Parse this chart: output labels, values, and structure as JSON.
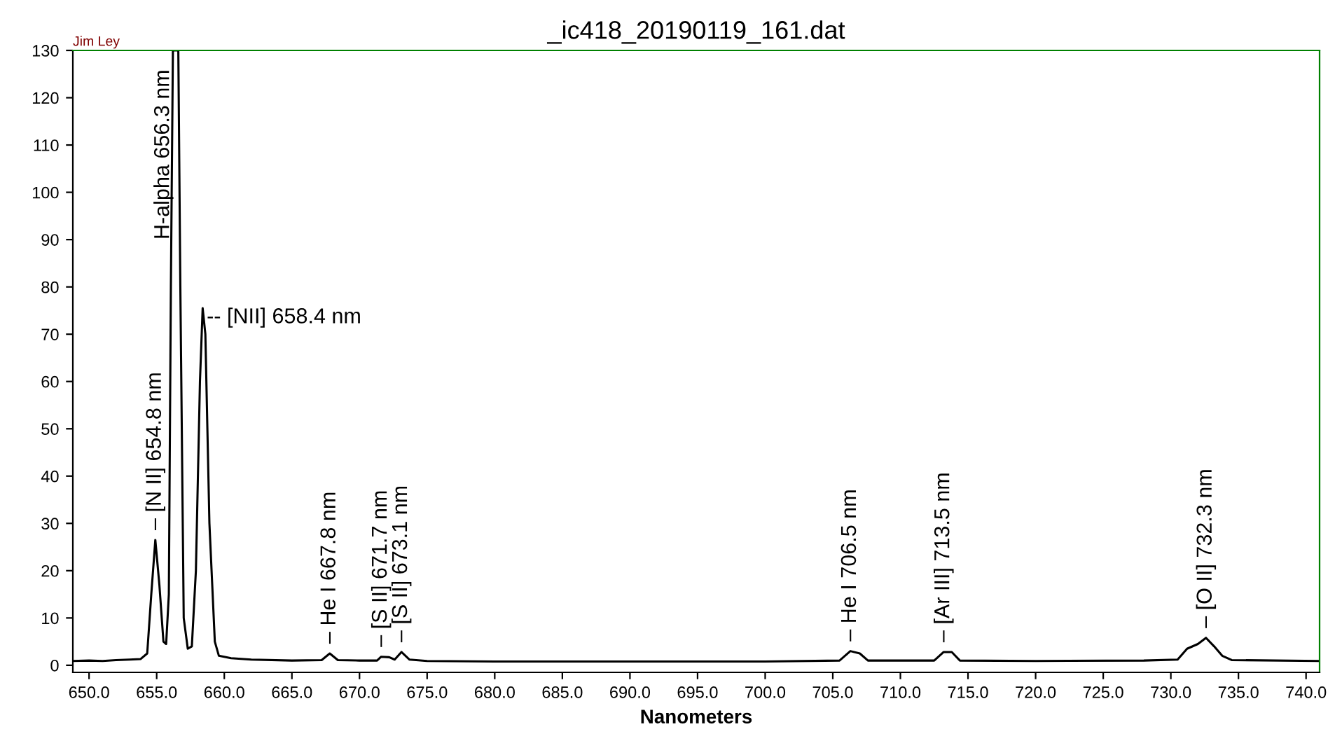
{
  "chart_data": {
    "type": "line",
    "title": "_ic418_20190119_161.dat",
    "xlabel": "Nanometers",
    "x": [
      648.8,
      650,
      651,
      652,
      653,
      653.8,
      654.3,
      654.6,
      654.9,
      655.2,
      655.5,
      655.7,
      655.9,
      656.05,
      656.2,
      656.6,
      656.75,
      657.0,
      657.3,
      657.6,
      657.9,
      658.2,
      658.4,
      658.6,
      658.9,
      659.3,
      659.6,
      660.5,
      662,
      665,
      667.2,
      667.8,
      668.4,
      670,
      671.3,
      671.6,
      672.2,
      672.6,
      673.1,
      673.7,
      675,
      680,
      690,
      700,
      705.5,
      706.3,
      707,
      707.6,
      712.5,
      713.2,
      713.8,
      714.4,
      720,
      728,
      730.5,
      731.2,
      732.0,
      732.6,
      733.2,
      733.8,
      734.5,
      741
    ],
    "series": [
      {
        "color": "#000000",
        "values": [
          0.9,
          1.0,
          0.9,
          1.1,
          1.2,
          1.3,
          2.5,
          15,
          26.5,
          17,
          5,
          4.5,
          15,
          80,
          130,
          130,
          80,
          10,
          3.5,
          4,
          20,
          60,
          75.5,
          70,
          30,
          5,
          2,
          1.5,
          1.2,
          1.0,
          1.1,
          2.5,
          1.1,
          1.0,
          1.0,
          1.8,
          1.7,
          1.2,
          2.8,
          1.2,
          0.9,
          0.8,
          0.8,
          0.8,
          1.0,
          3.0,
          2.5,
          1.0,
          1.0,
          2.8,
          2.8,
          1.0,
          0.9,
          1.0,
          1.2,
          3.5,
          4.5,
          5.8,
          4,
          2,
          1.1,
          0.9
        ]
      }
    ],
    "xlim": [
      648.8,
      741
    ],
    "ylim": [
      -1.5,
      130
    ],
    "xticks": [
      {
        "value": 650,
        "label": "650.0"
      },
      {
        "value": 655,
        "label": "655.0"
      },
      {
        "value": 660,
        "label": "660.0"
      },
      {
        "value": 665,
        "label": "665.0"
      },
      {
        "value": 670,
        "label": "670.0"
      },
      {
        "value": 675,
        "label": "675.0"
      },
      {
        "value": 680,
        "label": "680.0"
      },
      {
        "value": 685,
        "label": "685.0"
      },
      {
        "value": 690,
        "label": "690.0"
      },
      {
        "value": 695,
        "label": "695.0"
      },
      {
        "value": 700,
        "label": "700.0"
      },
      {
        "value": 705,
        "label": "705.0"
      },
      {
        "value": 710,
        "label": "710.0"
      },
      {
        "value": 715,
        "label": "715.0"
      },
      {
        "value": 720,
        "label": "720.0"
      },
      {
        "value": 725,
        "label": "725.0"
      },
      {
        "value": 730,
        "label": "730.0"
      },
      {
        "value": 735,
        "label": "735.0"
      },
      {
        "value": 740,
        "label": "740.0"
      }
    ],
    "yticks": [
      0,
      10,
      20,
      30,
      40,
      50,
      60,
      70,
      80,
      90,
      100,
      110,
      120,
      130
    ],
    "grid": false,
    "legend": false,
    "marker": "none",
    "line_style": "solid",
    "annotations": [
      "Jim Ley",
      {
        "text": "– [N II] 654.8 nm",
        "x": 654.9,
        "y": 26.5
      },
      {
        "text": "H-alpha 656.3 nm",
        "x": 655.5,
        "y": 90
      },
      {
        "text": "-- [NII] 658.4 nm",
        "x": 658.7,
        "y": 73.5
      },
      {
        "text": "– He I 667.8 nm",
        "x": 667.8,
        "y": 2.5
      },
      {
        "text": "– [S II] 671.7 nm",
        "x": 671.6,
        "y": 1.8
      },
      {
        "text": "– [S II] 673.1 nm",
        "x": 673.1,
        "y": 2.8
      },
      {
        "text": "– He I 706.5 nm",
        "x": 706.3,
        "y": 3.0
      },
      {
        "text": "– [Ar III] 713.5 nm",
        "x": 713.2,
        "y": 2.8
      },
      {
        "text": "– [O II] 732.3 nm",
        "x": 732.6,
        "y": 5.8
      }
    ]
  }
}
